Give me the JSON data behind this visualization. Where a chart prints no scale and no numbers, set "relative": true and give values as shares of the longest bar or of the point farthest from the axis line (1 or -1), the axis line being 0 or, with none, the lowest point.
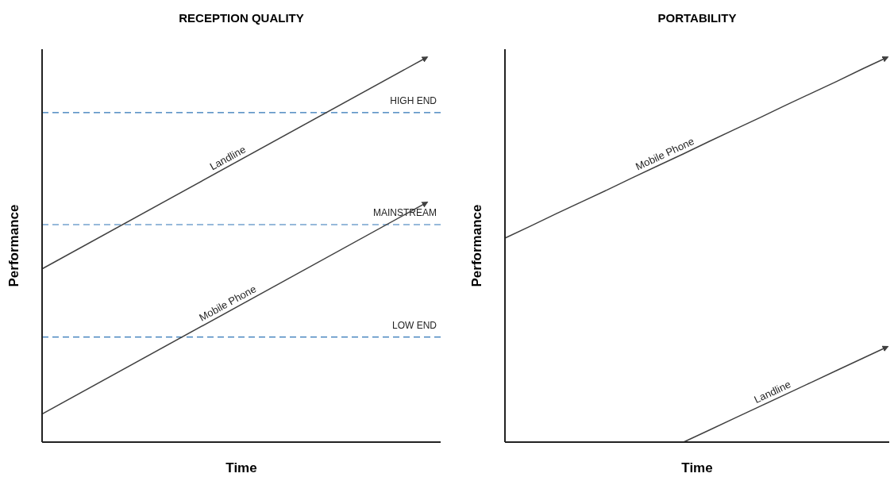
{
  "chart_data": [
    {
      "type": "line",
      "title": "RECEPTION QUALITY",
      "xlabel": "Time",
      "ylabel": "Performance",
      "relative": true,
      "categories": [
        null,
        null
      ],
      "series": [
        {
          "name": "Landline",
          "color": "#404040",
          "values": [
            0.45,
            1
          ]
        },
        {
          "name": "Mobile Phone",
          "color": "#404040",
          "values": [
            0.073,
            0.623
          ]
        }
      ],
      "ref_lines": [
        {
          "axis": "y",
          "value": 0.856,
          "label": "HIGH END",
          "color": "#2e75b6",
          "line_style": "dashed"
        },
        {
          "axis": "y",
          "value": 0.565,
          "label": "MAINSTREAM",
          "color": "#2e75b6",
          "line_style": "dashed"
        },
        {
          "axis": "y",
          "value": 0.273,
          "label": "LOW END",
          "color": "#2e75b6",
          "line_style": "dashed"
        }
      ]
    },
    {
      "type": "line",
      "title": "PORTABILITY",
      "xlabel": "Time",
      "ylabel": "Performance",
      "relative": true,
      "categories": [
        null,
        null,
        null,
        null,
        null,
        null,
        null,
        null,
        null,
        null,
        null,
        null,
        null,
        null,
        null,
        null
      ],
      "series": [
        {
          "name": "Mobile Phone",
          "color": "#404040",
          "values": [
            0.53,
            0.561,
            0.593,
            0.624,
            0.655,
            0.687,
            0.718,
            0.749,
            0.781,
            0.812,
            0.843,
            0.875,
            0.906,
            0.937,
            0.969,
            1
          ]
        },
        {
          "name": "Landline",
          "color": "#404040",
          "values": [
            null,
            null,
            null,
            null,
            null,
            null,
            null,
            0,
            0.031,
            0.062,
            0.093,
            0.124,
            0.155,
            0.186,
            0.217,
            0.248
          ]
        }
      ]
    }
  ]
}
